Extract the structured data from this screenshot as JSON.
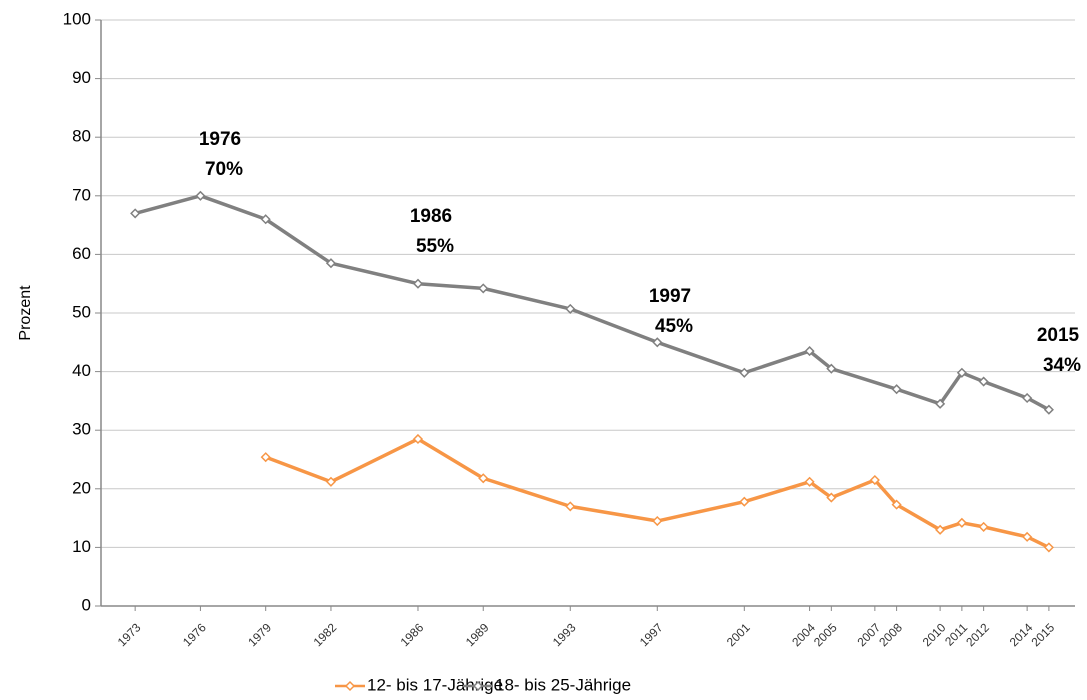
{
  "chart_data": {
    "type": "line",
    "ylabel": "Prozent",
    "xlim": [
      1971.43,
      2016.2
    ],
    "ylim": [
      0,
      100
    ],
    "yticks": [
      0,
      10,
      20,
      30,
      40,
      50,
      60,
      70,
      80,
      90,
      100
    ],
    "xticks": [
      1973,
      1976,
      1979,
      1982,
      1986,
      1989,
      1993,
      1997,
      2001,
      2004,
      2005,
      2007,
      2008,
      2010,
      2011,
      2012,
      2014,
      2015
    ],
    "grid": true,
    "legend": "bottom",
    "series": [
      {
        "name": "12- bis 17-Jährige",
        "color": "#f79646",
        "x": [
          1979,
          1982,
          1986,
          1989,
          1993,
          1997,
          2001,
          2004,
          2005,
          2007,
          2008,
          2010,
          2011,
          2012,
          2014,
          2015
        ],
        "values": [
          25.4,
          21.2,
          28.5,
          21.8,
          17,
          14.5,
          17.8,
          21.2,
          18.5,
          21.5,
          17.3,
          13,
          14.2,
          13.5,
          11.8,
          10
        ]
      },
      {
        "name": "18- bis 25-Jährige",
        "color": "#808080",
        "x": [
          1973,
          1976,
          1979,
          1982,
          1986,
          1989,
          1993,
          1997,
          2001,
          2004,
          2005,
          2008,
          2010,
          2011,
          2012,
          2014,
          2015
        ],
        "values": [
          67,
          70,
          66,
          58.5,
          55,
          54.2,
          50.7,
          45,
          39.8,
          43.5,
          40.5,
          37,
          34.5,
          39.8,
          38.3,
          35.5,
          33.5
        ]
      }
    ],
    "annotations": [
      [
        "1976",
        "70%"
      ],
      [
        "1986",
        "55%"
      ],
      [
        "1997",
        "45%"
      ],
      [
        "2015",
        "34%"
      ]
    ]
  }
}
